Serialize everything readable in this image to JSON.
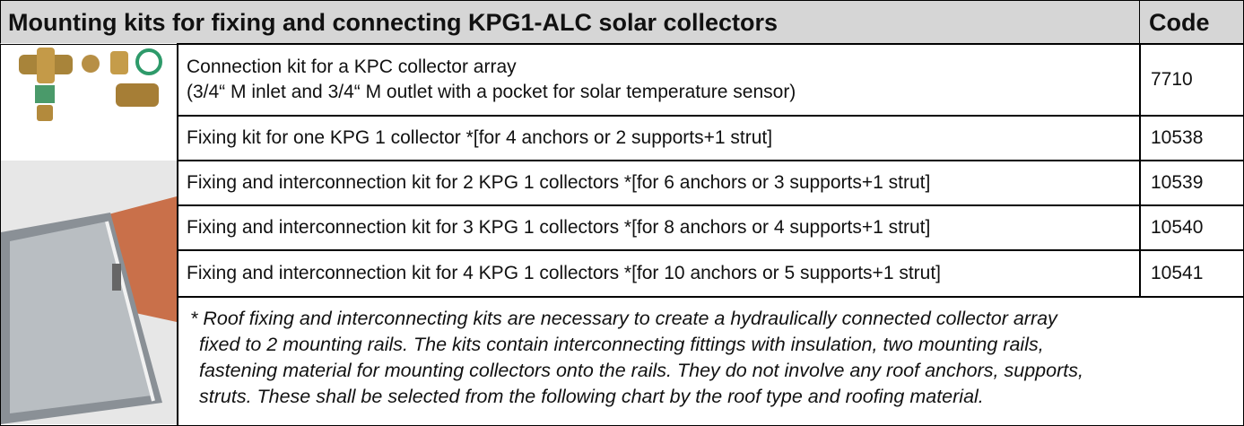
{
  "header": {
    "title": "Mounting kits for fixing and connecting KPG1-ALC solar collectors",
    "code": "Code"
  },
  "table": {
    "rows": [
      {
        "description": [
          "Connection kit for a KPC collector array",
          "(3/4“ M inlet and 3/4“ M outlet with a pocket for solar temperature sensor)"
        ],
        "code": 7710
      },
      {
        "description": [
          "Fixing kit for one KPG 1 collector *[for 4 anchors or 2 supports+1 strut]"
        ],
        "code": 10538
      },
      {
        "description": [
          "Fixing and interconnection kit for 2 KPG 1 collectors *[for 6 anchors or 3 supports+1 strut]"
        ],
        "code": 10539
      },
      {
        "description": [
          "Fixing and interconnection kit for 3 KPG 1 collectors *[for 8 anchors or 4 supports+1 strut]"
        ],
        "code": 10540
      },
      {
        "description": [
          "Fixing and interconnection kit for 4 KPG 1 collectors *[for 10 anchors or 5 supports+1 strut]"
        ],
        "code": 10541
      }
    ]
  },
  "footnote": [
    "* Roof fixing and interconnecting kits are necessary to create a hydraulically connected collector array",
    "fixed to 2 mounting rails. The kits contain interconnecting fittings with insulation, two mounting rails,",
    "fastening material for mounting collectors onto the rails. They do not involve any roof anchors, supports,",
    "struts. These shall be selected from the following  chart by the roof type and roofing material."
  ]
}
